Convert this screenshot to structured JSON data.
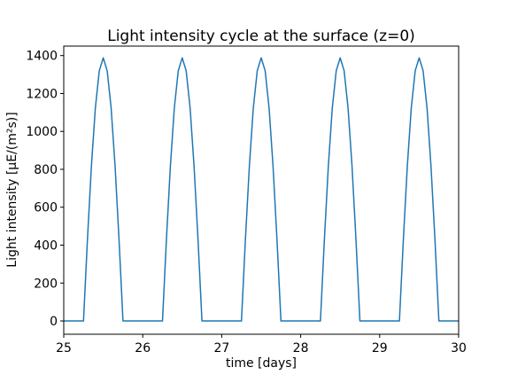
{
  "chart_data": {
    "type": "line",
    "title": "Light intensity cycle at the surface (z=0)",
    "xlabel": "time [days]",
    "ylabel": "Light intensity [μE/(m²s)]",
    "xlim": [
      25,
      30
    ],
    "ylim": [
      -70,
      1450
    ],
    "xticks": [
      25,
      26,
      27,
      28,
      29,
      30
    ],
    "yticks": [
      0,
      200,
      400,
      600,
      800,
      1000,
      1200,
      1400
    ],
    "grid": false,
    "series": [
      {
        "color": "#1f77b4",
        "x": [
          25.0,
          25.25,
          25.3,
          25.35,
          25.4,
          25.45,
          25.5,
          25.55,
          25.6,
          25.65,
          25.7,
          25.75,
          26.25,
          26.3,
          26.35,
          26.4,
          26.45,
          26.5,
          26.55,
          26.6,
          26.65,
          26.7,
          26.75,
          27.25,
          27.3,
          27.35,
          27.4,
          27.45,
          27.5,
          27.55,
          27.6,
          27.65,
          27.7,
          27.75,
          28.25,
          28.3,
          28.35,
          28.4,
          28.45,
          28.5,
          28.55,
          28.6,
          28.65,
          28.7,
          28.75,
          29.25,
          29.3,
          29.35,
          29.4,
          29.45,
          29.5,
          29.55,
          29.6,
          29.65,
          29.7,
          29.75,
          30.0
        ],
        "y": [
          0,
          0,
          429,
          816,
          1123,
          1320,
          1388,
          1320,
          1123,
          816,
          429,
          0,
          0,
          429,
          816,
          1123,
          1320,
          1388,
          1320,
          1123,
          816,
          429,
          0,
          0,
          429,
          816,
          1123,
          1320,
          1388,
          1320,
          1123,
          816,
          429,
          0,
          0,
          429,
          816,
          1123,
          1320,
          1388,
          1320,
          1123,
          816,
          429,
          0,
          0,
          429,
          816,
          1123,
          1320,
          1388,
          1320,
          1123,
          816,
          429,
          0,
          0
        ]
      }
    ]
  }
}
